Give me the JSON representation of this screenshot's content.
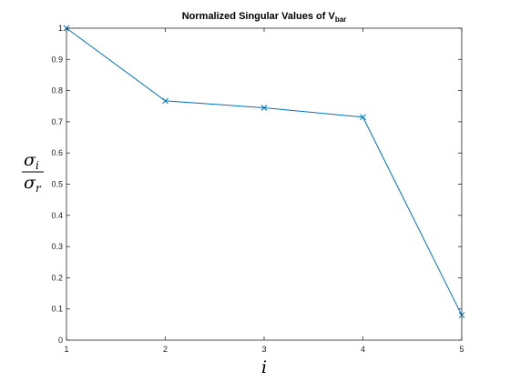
{
  "chart_data": {
    "type": "line",
    "title": {
      "main": "Normalized Singular Values of V",
      "subscript": "bar"
    },
    "xlabel": "i",
    "ylabel": {
      "numerator": "σ",
      "numerator_sub": "i",
      "denominator": "σ",
      "denominator_sub": "r"
    },
    "x": [
      1,
      2,
      3,
      4,
      5
    ],
    "series": [
      {
        "values": [
          1.0,
          0.767,
          0.745,
          0.715,
          0.08
        ]
      }
    ],
    "xlim": [
      1,
      5
    ],
    "ylim": [
      0,
      1
    ],
    "xticks": [
      1,
      2,
      3,
      4,
      5
    ],
    "yticks": [
      0,
      0.1,
      0.2,
      0.3,
      0.4,
      0.5,
      0.6,
      0.7,
      0.8,
      0.9,
      1
    ],
    "xtick_labels": [
      "1",
      "2",
      "3",
      "4",
      "5"
    ],
    "ytick_labels": [
      "0",
      "0.1",
      "0.2",
      "0.3",
      "0.4",
      "0.5",
      "0.6",
      "0.7",
      "0.8",
      "0.9",
      "1"
    ],
    "marker": "x",
    "grid": false,
    "line_color": "#0072BD",
    "axis_color": "#262626"
  }
}
